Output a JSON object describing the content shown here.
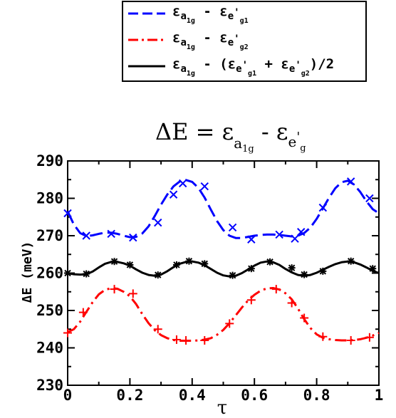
{
  "chart_data": {
    "type": "line",
    "title": {
      "main": "ΔE = ε",
      "sub1": "a",
      "sub1b": "1g",
      "mid": " - ε",
      "sub2": "e",
      "sup2": "'",
      "sub2b": "g"
    },
    "xlabel": "τ",
    "ylabel": "ΔE  (meV)",
    "xlim": [
      0,
      1
    ],
    "ylim": [
      230,
      290
    ],
    "x_ticks": [
      0,
      0.2,
      0.4,
      0.6,
      0.8,
      1
    ],
    "x_tick_labels": [
      "0",
      "0.2",
      "0.4",
      "0.6",
      "0.8",
      "1"
    ],
    "y_ticks": [
      230,
      240,
      250,
      260,
      270,
      280,
      290
    ],
    "y_tick_labels": [
      "230",
      "240",
      "250",
      "260",
      "270",
      "280",
      "290"
    ],
    "grid": false,
    "legend_position": "top",
    "legend": [
      {
        "eps": "ε",
        "a": "a",
        "a_sub": "1g",
        "op": " - ",
        "eps2": "ε",
        "e": "e",
        "prime": "'",
        "g": "g1",
        "tail": ""
      },
      {
        "eps": "ε",
        "a": "a",
        "a_sub": "1g",
        "op": " - ",
        "eps2": "ε",
        "e": "e",
        "prime": "'",
        "g": "g2",
        "tail": ""
      },
      {
        "eps": "ε",
        "a": "a",
        "a_sub": "1g",
        "op": " - ",
        "open": "(",
        "eps2": "ε",
        "e": "e",
        "prime": "'",
        "g": "g1",
        "plus": " + ",
        "eps3": "ε",
        "e3": "e",
        "prime3": "'",
        "g3": "g2",
        "tail": ")/2"
      }
    ],
    "series": [
      {
        "color": "#0000ff",
        "dash": "dashed",
        "marker": "x",
        "curve_x": [
          0,
          0.02,
          0.04,
          0.06,
          0.08,
          0.1,
          0.12,
          0.14,
          0.16,
          0.18,
          0.2,
          0.22,
          0.24,
          0.26,
          0.28,
          0.3,
          0.32,
          0.34,
          0.36,
          0.38,
          0.4,
          0.42,
          0.44,
          0.46,
          0.48,
          0.5,
          0.52,
          0.54,
          0.56,
          0.58,
          0.6,
          0.62,
          0.64,
          0.66,
          0.68,
          0.7,
          0.72,
          0.74,
          0.76,
          0.78,
          0.8,
          0.82,
          0.84,
          0.86,
          0.88,
          0.9,
          0.92,
          0.94,
          0.96,
          0.98,
          1.0
        ],
        "curve_y": [
          276.5,
          273.0,
          270.7,
          269.9,
          270.1,
          270.5,
          270.8,
          270.8,
          270.5,
          270.0,
          269.6,
          269.7,
          270.6,
          272.5,
          275.3,
          278.3,
          281.0,
          283.2,
          284.5,
          284.9,
          284.4,
          282.8,
          280.2,
          277.0,
          273.9,
          271.5,
          270.0,
          269.4,
          269.4,
          269.7,
          270.0,
          270.2,
          270.3,
          270.3,
          270.2,
          270.0,
          269.8,
          270.0,
          270.7,
          272.2,
          274.5,
          277.3,
          280.2,
          282.7,
          284.3,
          284.7,
          283.7,
          281.7,
          279.2,
          277.1,
          276.0
        ],
        "marker_x": [
          0.0,
          0.06,
          0.14,
          0.21,
          0.29,
          0.34,
          0.37,
          0.44,
          0.53,
          0.59,
          0.68,
          0.73,
          0.75,
          0.82,
          0.91,
          0.97
        ],
        "marker_y": [
          276.0,
          270.0,
          270.5,
          269.5,
          273.5,
          281.0,
          284.0,
          283.2,
          272.2,
          269.0,
          270.3,
          269.2,
          271.0,
          277.5,
          284.5,
          280.0
        ]
      },
      {
        "color": "#ff0000",
        "dash": "dash-dot",
        "marker": "+",
        "curve_x": [
          0,
          0.02,
          0.04,
          0.06,
          0.08,
          0.1,
          0.12,
          0.14,
          0.16,
          0.18,
          0.2,
          0.22,
          0.24,
          0.26,
          0.28,
          0.3,
          0.32,
          0.34,
          0.36,
          0.38,
          0.4,
          0.42,
          0.44,
          0.46,
          0.48,
          0.5,
          0.52,
          0.54,
          0.56,
          0.58,
          0.6,
          0.62,
          0.64,
          0.66,
          0.68,
          0.7,
          0.72,
          0.74,
          0.76,
          0.78,
          0.8,
          0.82,
          0.84,
          0.86,
          0.88,
          0.9,
          0.92,
          0.94,
          0.96,
          0.98,
          1.0
        ],
        "curve_y": [
          244.2,
          245.0,
          247.0,
          249.6,
          252.2,
          254.3,
          255.5,
          256.0,
          255.8,
          255.0,
          253.8,
          251.7,
          249.0,
          246.6,
          244.7,
          243.4,
          242.6,
          242.1,
          241.9,
          241.9,
          241.9,
          242.0,
          242.2,
          242.6,
          243.5,
          244.8,
          246.6,
          248.7,
          250.8,
          252.7,
          254.2,
          255.3,
          255.9,
          256.0,
          255.6,
          254.6,
          253.0,
          250.5,
          247.7,
          245.3,
          243.6,
          242.7,
          242.3,
          242.1,
          242.0,
          242.0,
          242.1,
          242.3,
          242.7,
          243.3,
          244.0
        ],
        "marker_x": [
          0.0,
          0.05,
          0.15,
          0.21,
          0.29,
          0.35,
          0.38,
          0.44,
          0.52,
          0.59,
          0.67,
          0.72,
          0.76,
          0.82,
          0.91,
          0.97
        ],
        "marker_y": [
          244.0,
          249.5,
          255.7,
          254.5,
          245.0,
          242.2,
          242.0,
          242.0,
          246.5,
          252.8,
          255.7,
          252.0,
          248.0,
          243.0,
          242.0,
          242.8
        ]
      },
      {
        "color": "#000000",
        "dash": "solid",
        "marker": "*",
        "curve_x": [
          0,
          0.02,
          0.04,
          0.06,
          0.08,
          0.1,
          0.12,
          0.14,
          0.16,
          0.18,
          0.2,
          0.22,
          0.24,
          0.26,
          0.28,
          0.3,
          0.32,
          0.34,
          0.36,
          0.38,
          0.4,
          0.42,
          0.44,
          0.46,
          0.48,
          0.5,
          0.52,
          0.54,
          0.56,
          0.58,
          0.6,
          0.62,
          0.64,
          0.66,
          0.68,
          0.7,
          0.72,
          0.74,
          0.76,
          0.78,
          0.8,
          0.82,
          0.84,
          0.86,
          0.88,
          0.9,
          0.92,
          0.94,
          0.96,
          0.98,
          1.0
        ],
        "curve_y": [
          260.0,
          259.7,
          259.6,
          259.7,
          260.4,
          261.5,
          262.5,
          263.0,
          263.0,
          262.6,
          262.0,
          261.0,
          260.1,
          259.5,
          259.3,
          259.6,
          260.5,
          261.6,
          262.5,
          263.0,
          263.1,
          262.8,
          262.1,
          261.1,
          260.1,
          259.4,
          259.1,
          259.3,
          260.0,
          261.0,
          262.0,
          262.8,
          263.1,
          262.9,
          262.2,
          261.1,
          260.2,
          259.5,
          259.3,
          259.5,
          260.1,
          260.9,
          261.7,
          262.4,
          262.9,
          263.1,
          262.9,
          262.3,
          261.5,
          260.6,
          260.0
        ],
        "marker_x": [
          0.0,
          0.06,
          0.15,
          0.2,
          0.29,
          0.35,
          0.39,
          0.44,
          0.53,
          0.59,
          0.65,
          0.72,
          0.76,
          0.82,
          0.91,
          0.98
        ],
        "marker_y": [
          260.0,
          259.8,
          263.1,
          262.2,
          259.5,
          262.2,
          263.2,
          262.5,
          259.4,
          261.2,
          263.0,
          261.4,
          259.6,
          260.5,
          263.2,
          261.2
        ]
      }
    ]
  }
}
